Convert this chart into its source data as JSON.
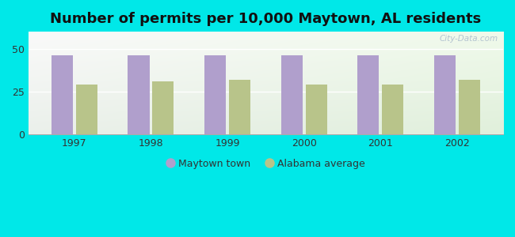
{
  "title": "Number of permits per 10,000 Maytown, AL residents",
  "years": [
    1997,
    1998,
    1999,
    2000,
    2001,
    2002
  ],
  "maytown_values": [
    46,
    46,
    46,
    46,
    46,
    46
  ],
  "alabama_values": [
    29,
    31,
    32,
    29,
    29,
    32
  ],
  "maytown_color": "#b09fcc",
  "alabama_color": "#b8c48a",
  "background_color": "#00e8e8",
  "yticks": [
    0,
    25,
    50
  ],
  "ylim": [
    0,
    60
  ],
  "bar_width": 0.28,
  "title_fontsize": 13,
  "legend_labels": [
    "Maytown town",
    "Alabama average"
  ],
  "watermark": "City-Data.com"
}
